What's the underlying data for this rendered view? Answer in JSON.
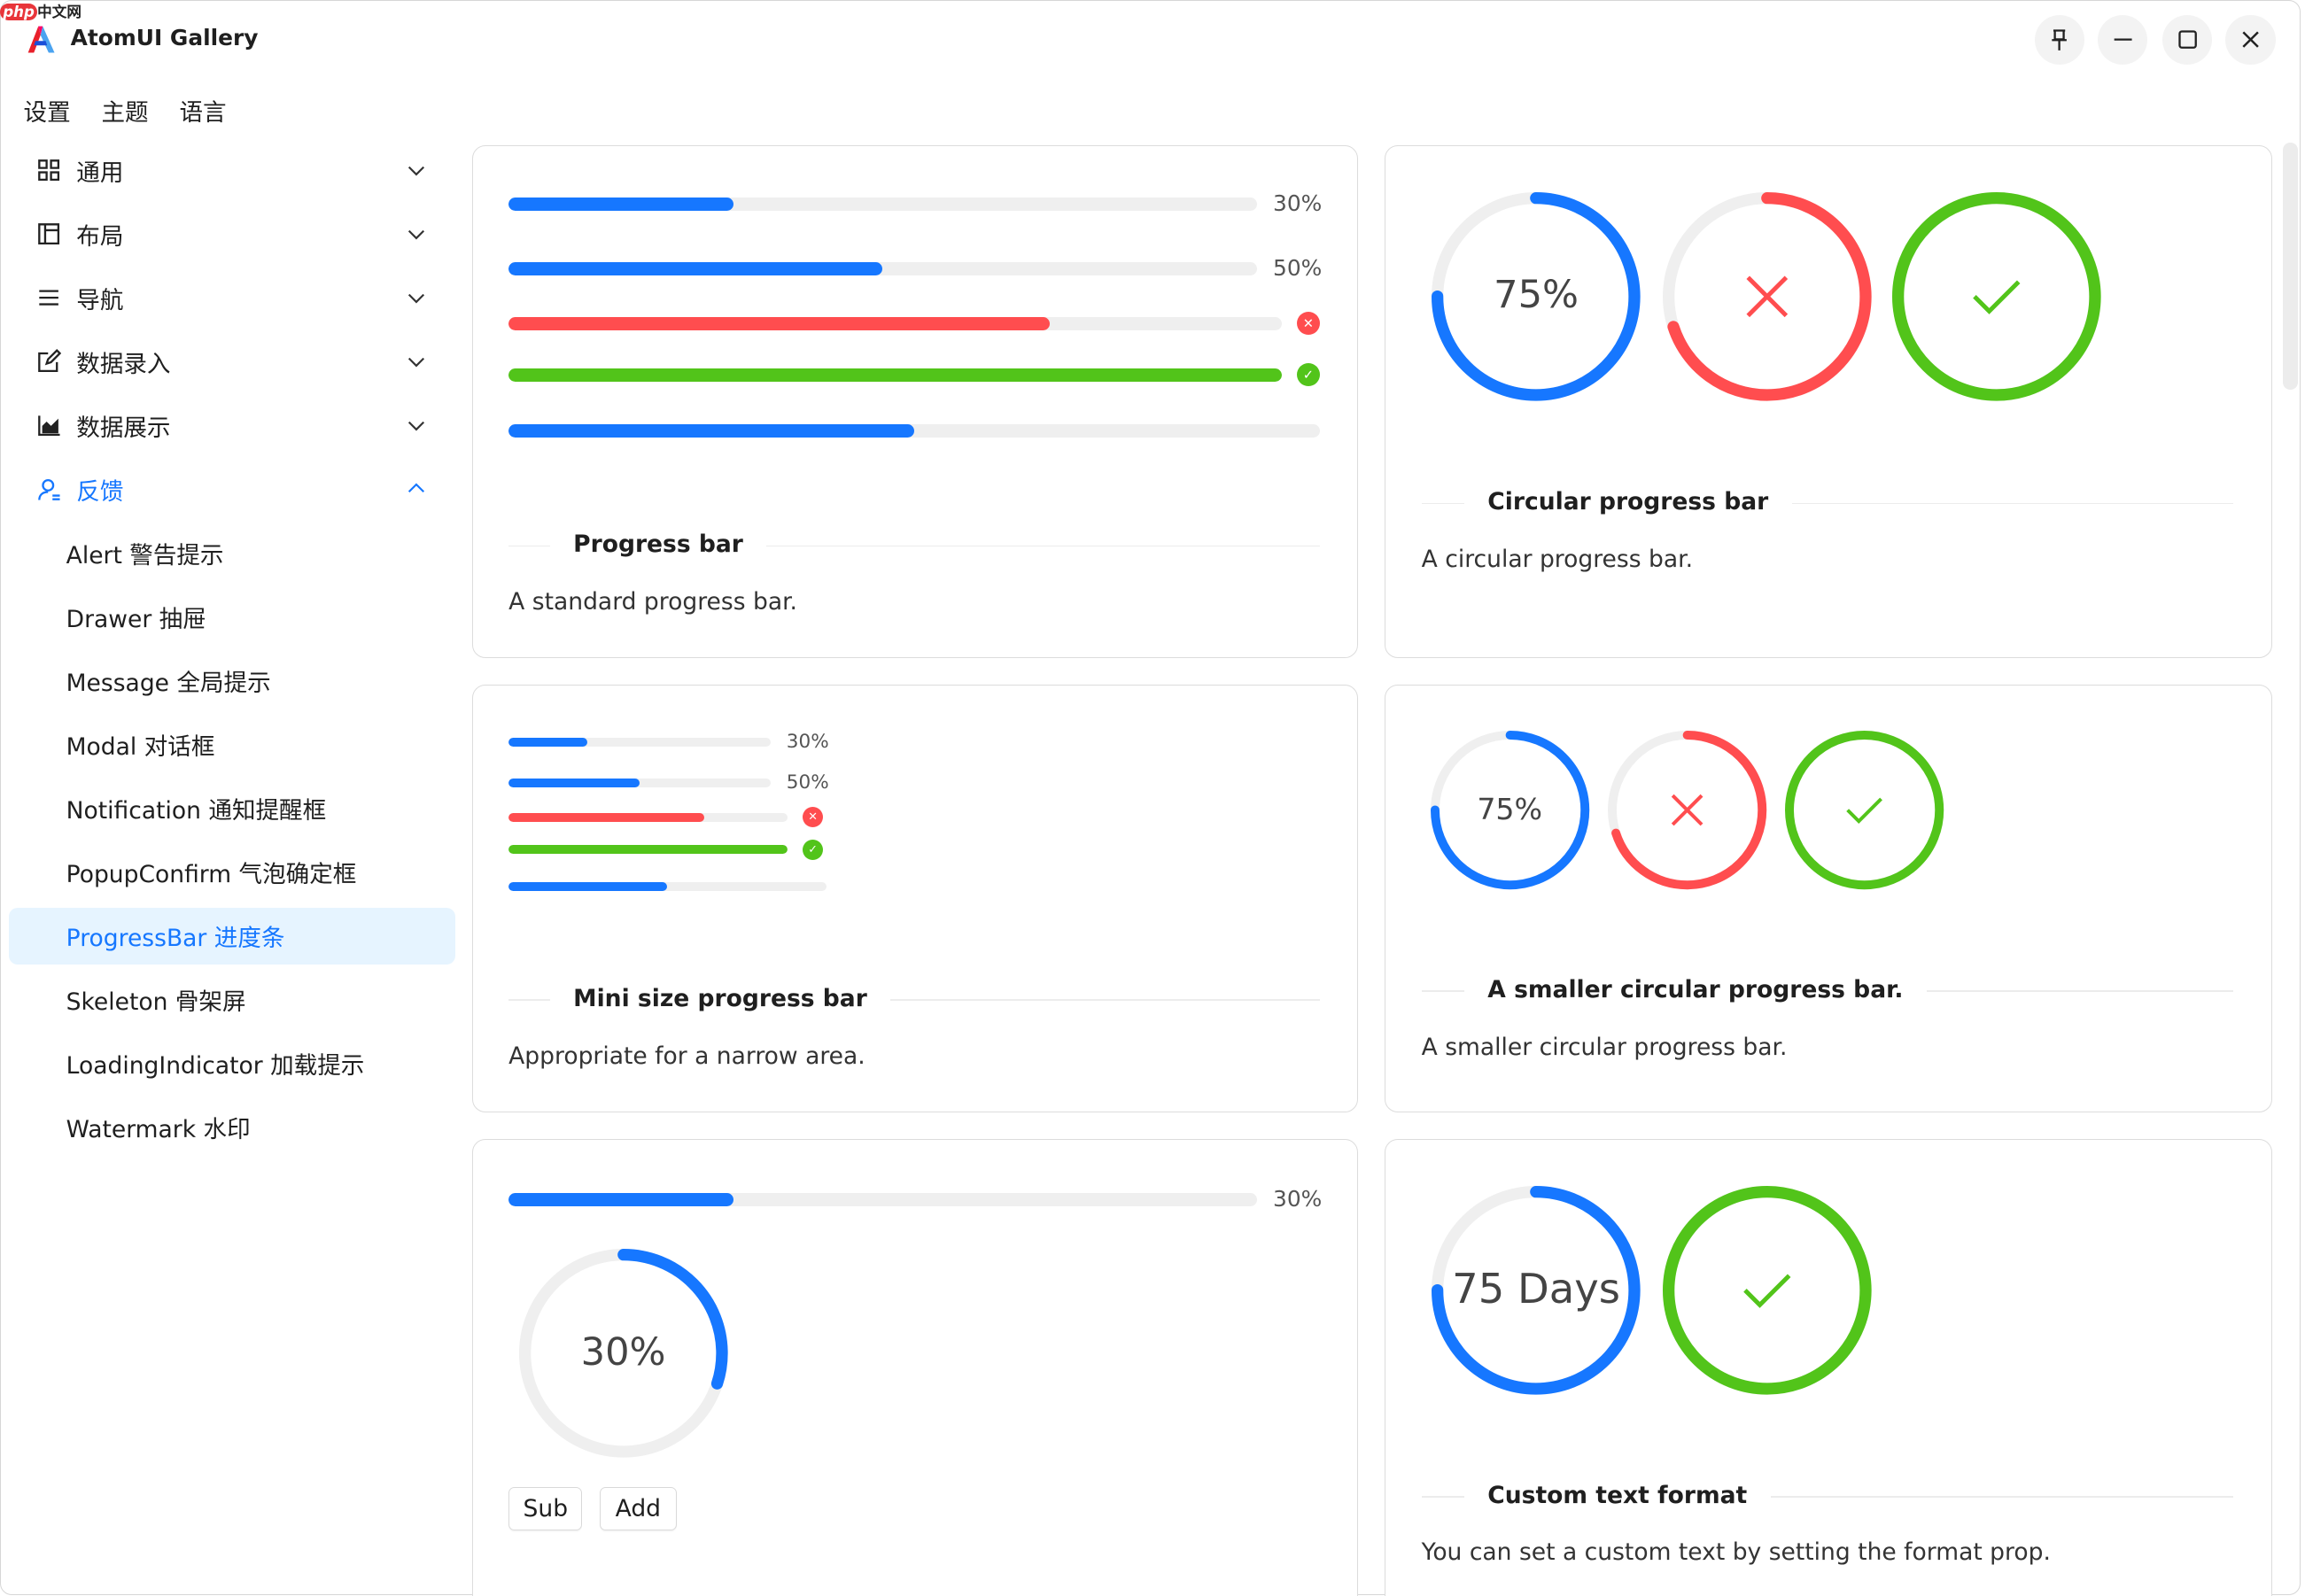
{
  "watermark": "php中文网",
  "app": {
    "title": "AtomUI Gallery"
  },
  "window_controls": [
    {
      "name": "pin-icon"
    },
    {
      "name": "minimize-icon"
    },
    {
      "name": "maximize-icon"
    },
    {
      "name": "close-icon"
    }
  ],
  "menu": [
    "设置",
    "主题",
    "语言"
  ],
  "sidebar": {
    "groups": [
      {
        "label": "通用",
        "icon": "grid-icon",
        "expanded": false
      },
      {
        "label": "布局",
        "icon": "layout-icon",
        "expanded": false
      },
      {
        "label": "导航",
        "icon": "menu-icon",
        "expanded": false
      },
      {
        "label": "数据录入",
        "icon": "edit-icon",
        "expanded": false
      },
      {
        "label": "数据展示",
        "icon": "chart-icon",
        "expanded": false
      },
      {
        "label": "反馈",
        "icon": "user-icon",
        "expanded": true
      }
    ],
    "items": [
      "Alert 警告提示",
      "Drawer 抽屉",
      "Message 全局提示",
      "Modal 对话框",
      "Notification 通知提醒框",
      "PopupConfirm 气泡确定框",
      "ProgressBar 进度条",
      "Skeleton 骨架屏",
      "LoadingIndicator 加载提示",
      "Watermark 水印"
    ],
    "active_index": 6
  },
  "colors": {
    "primary": "#1677ff",
    "error": "#ff4d4f",
    "success": "#52c41a",
    "track": "#efefef"
  },
  "cards": {
    "progress": {
      "title": "Progress bar",
      "desc": "A standard progress bar.",
      "bars": [
        {
          "percent": 30,
          "status": "normal",
          "label": "30%"
        },
        {
          "percent": 50,
          "status": "normal",
          "label": "50%"
        },
        {
          "percent": 70,
          "status": "exception"
        },
        {
          "percent": 100,
          "status": "success"
        },
        {
          "percent": 50,
          "status": "normal",
          "show_info": false
        }
      ]
    },
    "circle": {
      "title": "Circular progress bar",
      "desc": "A circular progress bar.",
      "circles": [
        {
          "percent": 75,
          "status": "normal",
          "label": "75%"
        },
        {
          "percent": 70,
          "status": "exception"
        },
        {
          "percent": 100,
          "status": "success"
        }
      ]
    },
    "mini": {
      "title": "Mini size progress bar",
      "desc": "Appropriate for a narrow area.",
      "bars": [
        {
          "percent": 30,
          "status": "normal",
          "label": "30%"
        },
        {
          "percent": 50,
          "status": "normal",
          "label": "50%"
        },
        {
          "percent": 70,
          "status": "exception"
        },
        {
          "percent": 100,
          "status": "success"
        },
        {
          "percent": 50,
          "status": "normal",
          "show_info": false
        }
      ]
    },
    "small_circle": {
      "title": "A smaller circular progress bar.",
      "desc": "A smaller circular progress bar.",
      "circles": [
        {
          "percent": 75,
          "status": "normal",
          "label": "75%"
        },
        {
          "percent": 70,
          "status": "exception"
        },
        {
          "percent": 100,
          "status": "success"
        }
      ]
    },
    "dynamic": {
      "bar": {
        "percent": 30,
        "label": "30%"
      },
      "circle": {
        "percent": 30,
        "label": "30%"
      },
      "sub_label": "Sub",
      "add_label": "Add"
    },
    "format": {
      "title": "Custom text format",
      "desc": "You can set a custom text by setting the format prop.",
      "circles": [
        {
          "percent": 75,
          "status": "normal",
          "label": "75 Days"
        },
        {
          "percent": 100,
          "status": "success"
        }
      ]
    }
  }
}
